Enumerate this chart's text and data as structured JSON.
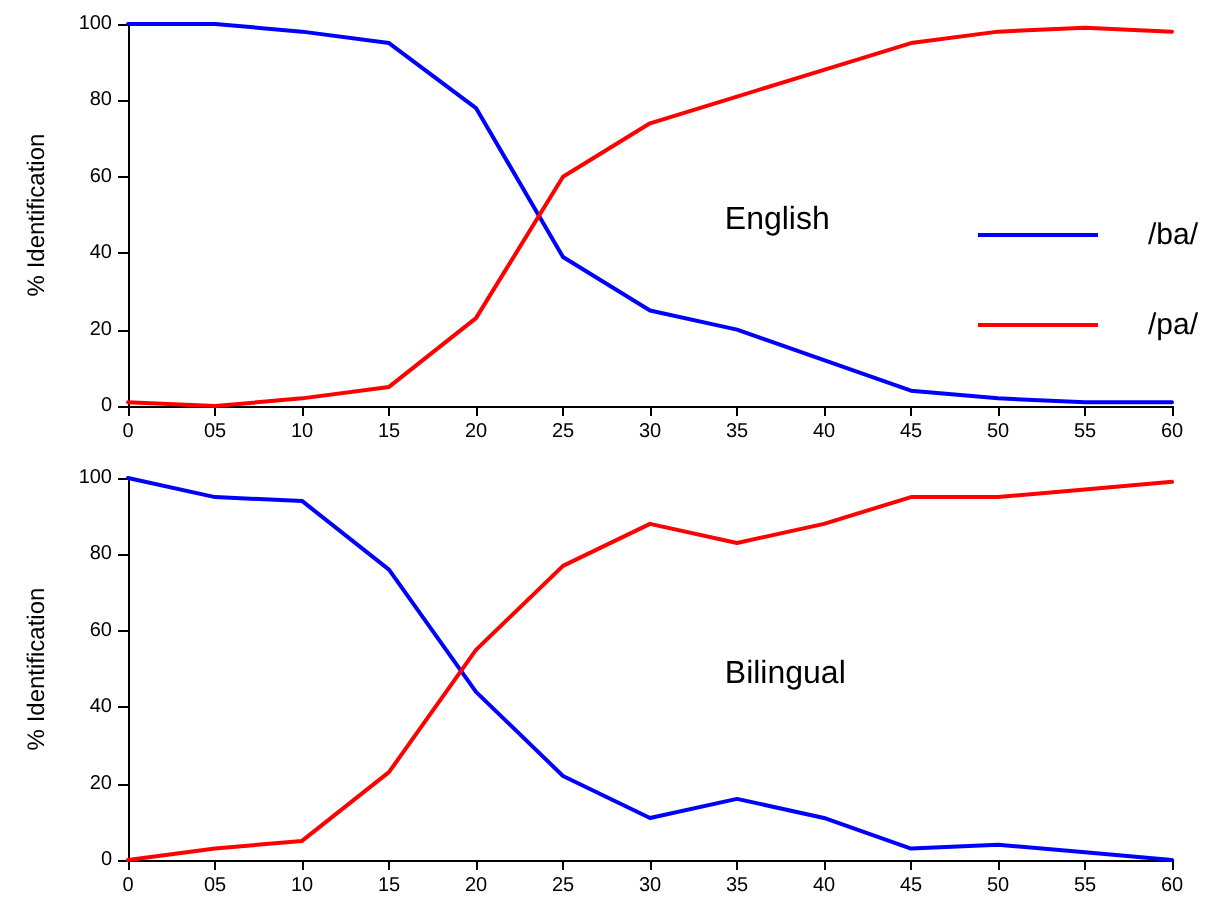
{
  "chart_data": [
    {
      "type": "line",
      "categories": [
        "0",
        "05",
        "10",
        "15",
        "20",
        "25",
        "30",
        "35",
        "40",
        "45",
        "50",
        "55",
        "60"
      ],
      "ylabel": "% Identification",
      "ylim": [
        0,
        100
      ],
      "yticks": [
        0,
        20,
        40,
        60,
        80,
        100
      ],
      "grid": false,
      "legend": "right",
      "marker": "none",
      "line_style": "solid",
      "annotations": [
        "English"
      ],
      "series": [
        {
          "name": "/ba/",
          "color": "#0000ff",
          "values": [
            100,
            100,
            98,
            95,
            78,
            39,
            25,
            20,
            12,
            4,
            2,
            1,
            1
          ]
        },
        {
          "name": "/pa/",
          "color": "#ff0000",
          "values": [
            1,
            0,
            2,
            5,
            23,
            60,
            74,
            81,
            88,
            95,
            98,
            99,
            98
          ]
        }
      ]
    },
    {
      "type": "line",
      "categories": [
        "0",
        "05",
        "10",
        "15",
        "20",
        "25",
        "30",
        "35",
        "40",
        "45",
        "50",
        "55",
        "60"
      ],
      "ylabel": "% Identification",
      "ylim": [
        0,
        100
      ],
      "yticks": [
        0,
        20,
        40,
        60,
        80,
        100
      ],
      "grid": false,
      "legend": false,
      "marker": "none",
      "line_style": "solid",
      "annotations": [
        "Bilingual"
      ],
      "series": [
        {
          "color": "#0000ff",
          "values": [
            100,
            95,
            94,
            76,
            44,
            22,
            11,
            16,
            11,
            3,
            4,
            2,
            0
          ]
        },
        {
          "color": "#ff0000",
          "values": [
            0,
            3,
            5,
            23,
            55,
            77,
            88,
            83,
            88,
            95,
            95,
            97,
            99
          ]
        }
      ]
    }
  ]
}
